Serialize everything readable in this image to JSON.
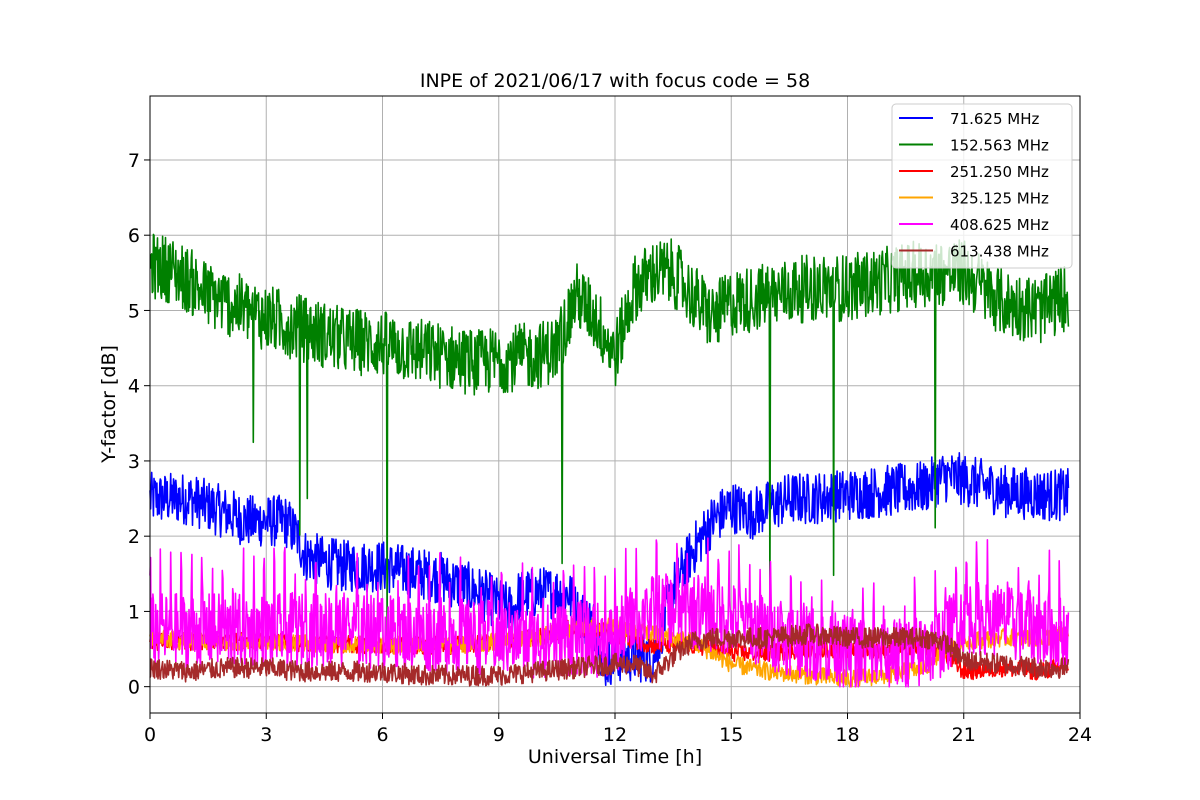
{
  "chart_data": {
    "type": "line",
    "title": "INPE of 2021/06/17 with focus code = 58",
    "xlabel": "Universal Time [h]",
    "ylabel": "Y-factor [dB]",
    "xlim": [
      0,
      24
    ],
    "ylim": [
      -0.35,
      7.85
    ],
    "xticks": [
      0,
      3,
      6,
      9,
      12,
      15,
      18,
      21,
      24
    ],
    "yticks": [
      0,
      1,
      2,
      3,
      4,
      5,
      6,
      7
    ],
    "grid": true,
    "legend_position": "top-right",
    "series": [
      {
        "name": " 71.625 MHz",
        "color": "#0000ff",
        "baseline": [
          [
            0,
            2.5
          ],
          [
            0.5,
            2.5
          ],
          [
            1,
            2.5
          ],
          [
            1.5,
            2.4
          ],
          [
            2,
            2.3
          ],
          [
            2.5,
            2.2
          ],
          [
            3,
            2.2
          ],
          [
            3.5,
            2.2
          ],
          [
            3.8,
            2.0
          ],
          [
            4,
            1.75
          ],
          [
            4.5,
            1.65
          ],
          [
            5,
            1.6
          ],
          [
            6,
            1.6
          ],
          [
            7,
            1.5
          ],
          [
            7.5,
            1.45
          ],
          [
            8,
            1.35
          ],
          [
            8.5,
            1.25
          ],
          [
            9,
            1.1
          ],
          [
            9.4,
            1.0
          ],
          [
            9.5,
            1.2
          ],
          [
            10,
            1.25
          ],
          [
            10.5,
            1.25
          ],
          [
            10.8,
            1.25
          ],
          [
            11,
            1.0
          ],
          [
            11.5,
            0.8
          ],
          [
            11.7,
            0.3
          ],
          [
            12,
            0.4
          ],
          [
            12.5,
            0.4
          ],
          [
            13,
            0.4
          ],
          [
            13.5,
            1.3
          ],
          [
            14,
            1.8
          ],
          [
            14.5,
            2.2
          ],
          [
            15,
            2.4
          ],
          [
            15.5,
            2.3
          ],
          [
            16,
            2.4
          ],
          [
            16.5,
            2.5
          ],
          [
            17,
            2.5
          ],
          [
            18,
            2.55
          ],
          [
            19,
            2.6
          ],
          [
            20,
            2.65
          ],
          [
            20.5,
            2.8
          ],
          [
            21,
            2.75
          ],
          [
            22,
            2.6
          ],
          [
            23,
            2.55
          ],
          [
            23.7,
            2.55
          ]
        ],
        "noise": 0.35
      },
      {
        "name": "152.563 MHz",
        "color": "#008000",
        "baseline": [
          [
            0,
            5.6
          ],
          [
            0.5,
            5.55
          ],
          [
            1,
            5.4
          ],
          [
            1.5,
            5.2
          ],
          [
            2,
            5.1
          ],
          [
            3,
            4.9
          ],
          [
            4,
            4.75
          ],
          [
            5,
            4.6
          ],
          [
            6,
            4.55
          ],
          [
            7,
            4.45
          ],
          [
            8,
            4.35
          ],
          [
            8.5,
            4.3
          ],
          [
            9,
            4.35
          ],
          [
            10,
            4.4
          ],
          [
            10.5,
            4.5
          ],
          [
            11,
            5.2
          ],
          [
            11.5,
            4.9
          ],
          [
            12,
            4.4
          ],
          [
            12.5,
            5.3
          ],
          [
            13,
            5.5
          ],
          [
            13.5,
            5.5
          ],
          [
            14,
            5.2
          ],
          [
            14.5,
            4.9
          ],
          [
            15,
            5.1
          ],
          [
            16,
            5.2
          ],
          [
            17,
            5.3
          ],
          [
            18,
            5.3
          ],
          [
            19,
            5.4
          ],
          [
            20,
            5.5
          ],
          [
            21,
            5.5
          ],
          [
            22,
            5.1
          ],
          [
            23,
            5.0
          ],
          [
            23.7,
            5.2
          ]
        ],
        "noise": 0.45
      },
      {
        "name": "251.250 MHz",
        "color": "#ff0000",
        "baseline": [
          [
            0,
            0.6
          ],
          [
            1,
            0.6
          ],
          [
            3,
            0.6
          ],
          [
            6,
            0.55
          ],
          [
            8,
            0.55
          ],
          [
            9,
            0.6
          ],
          [
            10,
            0.65
          ],
          [
            11,
            0.8
          ],
          [
            12,
            0.7
          ],
          [
            13,
            0.55
          ],
          [
            14,
            0.55
          ],
          [
            15,
            0.45
          ],
          [
            16,
            0.45
          ],
          [
            17,
            0.5
          ],
          [
            18,
            0.5
          ],
          [
            19,
            0.5
          ],
          [
            20,
            0.55
          ],
          [
            20.5,
            0.45
          ],
          [
            21,
            0.2
          ],
          [
            22,
            0.25
          ],
          [
            23,
            0.2
          ],
          [
            23.7,
            0.3
          ]
        ],
        "noise": 0.12
      },
      {
        "name": "325.125 MHz",
        "color": "#ffa500",
        "baseline": [
          [
            0,
            0.65
          ],
          [
            1,
            0.6
          ],
          [
            3,
            0.6
          ],
          [
            6,
            0.55
          ],
          [
            8,
            0.55
          ],
          [
            9,
            0.6
          ],
          [
            10,
            0.65
          ],
          [
            11,
            0.8
          ],
          [
            12,
            0.8
          ],
          [
            13,
            0.7
          ],
          [
            14,
            0.6
          ],
          [
            15,
            0.3
          ],
          [
            16,
            0.2
          ],
          [
            17,
            0.15
          ],
          [
            18,
            0.1
          ],
          [
            19,
            0.15
          ],
          [
            20,
            0.25
          ],
          [
            20.5,
            0.5
          ],
          [
            21,
            0.6
          ],
          [
            22,
            0.65
          ],
          [
            23,
            0.65
          ],
          [
            23.7,
            0.7
          ]
        ],
        "noise": 0.12
      },
      {
        "name": "408.625 MHz",
        "color": "#ff00ff",
        "baseline": [
          [
            0,
            0.75
          ],
          [
            1,
            0.75
          ],
          [
            3,
            0.75
          ],
          [
            5,
            0.75
          ],
          [
            7,
            0.7
          ],
          [
            9,
            0.65
          ],
          [
            10,
            0.6
          ],
          [
            11,
            0.65
          ],
          [
            12,
            0.6
          ],
          [
            12.5,
            0.9
          ],
          [
            13,
            1.0
          ],
          [
            14,
            1.0
          ],
          [
            15,
            0.9
          ],
          [
            16,
            0.7
          ],
          [
            17,
            0.6
          ],
          [
            18,
            0.45
          ],
          [
            19,
            0.4
          ],
          [
            20,
            0.45
          ],
          [
            20.5,
            0.65
          ],
          [
            21,
            0.95
          ],
          [
            22,
            0.85
          ],
          [
            23,
            0.75
          ],
          [
            23.7,
            0.7
          ]
        ],
        "noise": 0.5
      },
      {
        "name": "613.438 MHz",
        "color": "#a52a2a",
        "baseline": [
          [
            0,
            0.25
          ],
          [
            1,
            0.2
          ],
          [
            2,
            0.25
          ],
          [
            3,
            0.25
          ],
          [
            4,
            0.2
          ],
          [
            5,
            0.2
          ],
          [
            6,
            0.2
          ],
          [
            7,
            0.15
          ],
          [
            8,
            0.15
          ],
          [
            9,
            0.15
          ],
          [
            10,
            0.2
          ],
          [
            11,
            0.25
          ],
          [
            12,
            0.3
          ],
          [
            12.5,
            0.3
          ],
          [
            13,
            0.15
          ],
          [
            13.5,
            0.4
          ],
          [
            14,
            0.6
          ],
          [
            14.5,
            0.65
          ],
          [
            15,
            0.65
          ],
          [
            16,
            0.65
          ],
          [
            17,
            0.7
          ],
          [
            18,
            0.65
          ],
          [
            19,
            0.65
          ],
          [
            20,
            0.65
          ],
          [
            20.5,
            0.6
          ],
          [
            21,
            0.35
          ],
          [
            22,
            0.3
          ],
          [
            23,
            0.25
          ],
          [
            23.7,
            0.25
          ]
        ],
        "noise": 0.14
      }
    ]
  }
}
